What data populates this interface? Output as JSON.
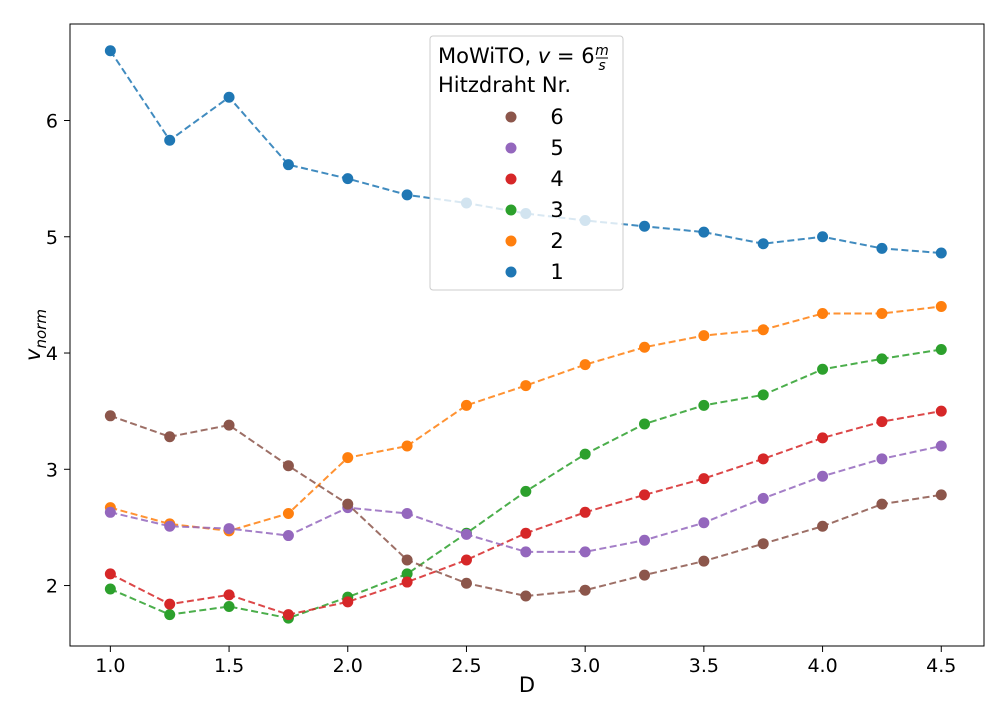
{
  "chart_data": {
    "type": "line",
    "xlabel": "D",
    "ylabel": "v",
    "ylabel_sub": "norm",
    "xlim": [
      0.83,
      4.68
    ],
    "ylim": [
      1.48,
      6.83
    ],
    "x_ticks": [
      "1.0",
      "1.5",
      "2.0",
      "2.5",
      "3.0",
      "3.5",
      "4.0",
      "4.5"
    ],
    "x_tick_values": [
      1.0,
      1.5,
      2.0,
      2.5,
      3.0,
      3.5,
      4.0,
      4.5
    ],
    "y_ticks": [
      "2",
      "3",
      "4",
      "5",
      "6"
    ],
    "y_tick_values": [
      2,
      3,
      4,
      5,
      6
    ],
    "grid": false,
    "legend_position": "top-center",
    "legend": {
      "title_prefix": "MoWiTO, ",
      "title_v": "v",
      "title_eq": " = 6",
      "title_frac_num": "m",
      "title_frac_den": "s",
      "subtitle": "Hitzdraht Nr.",
      "order": [
        "6",
        "5",
        "4",
        "3",
        "2",
        "1"
      ]
    },
    "x": [
      1.0,
      1.25,
      1.5,
      1.75,
      2.0,
      2.25,
      2.5,
      2.75,
      3.0,
      3.25,
      3.5,
      3.75,
      4.0,
      4.25,
      4.5
    ],
    "series": [
      {
        "name": "1",
        "color": "#1f77b4",
        "values": [
          6.6,
          5.83,
          6.2,
          5.62,
          5.5,
          5.36,
          5.29,
          5.2,
          5.14,
          5.09,
          5.04,
          4.94,
          5.0,
          4.9,
          4.86
        ]
      },
      {
        "name": "2",
        "color": "#ff7f0e",
        "values": [
          2.67,
          2.53,
          2.47,
          2.62,
          3.1,
          3.2,
          3.55,
          3.72,
          3.9,
          4.05,
          4.15,
          4.2,
          4.34,
          4.34,
          4.4
        ]
      },
      {
        "name": "3",
        "color": "#2ca02c",
        "values": [
          1.97,
          1.75,
          1.82,
          1.72,
          1.9,
          2.1,
          2.45,
          2.81,
          3.13,
          3.39,
          3.55,
          3.64,
          3.86,
          3.95,
          4.03
        ]
      },
      {
        "name": "4",
        "color": "#d62728",
        "values": [
          2.1,
          1.84,
          1.92,
          1.75,
          1.86,
          2.03,
          2.22,
          2.45,
          2.63,
          2.78,
          2.92,
          3.09,
          3.27,
          3.41,
          3.5
        ]
      },
      {
        "name": "5",
        "color": "#9467bd",
        "values": [
          2.63,
          2.51,
          2.49,
          2.43,
          2.67,
          2.62,
          2.44,
          2.29,
          2.29,
          2.39,
          2.54,
          2.75,
          2.94,
          3.09,
          3.2
        ]
      },
      {
        "name": "6",
        "color": "#8c564b",
        "values": [
          3.46,
          3.28,
          3.38,
          3.03,
          2.7,
          2.22,
          2.02,
          1.91,
          1.96,
          2.09,
          2.21,
          2.36,
          2.51,
          2.7,
          2.78
        ]
      }
    ]
  }
}
